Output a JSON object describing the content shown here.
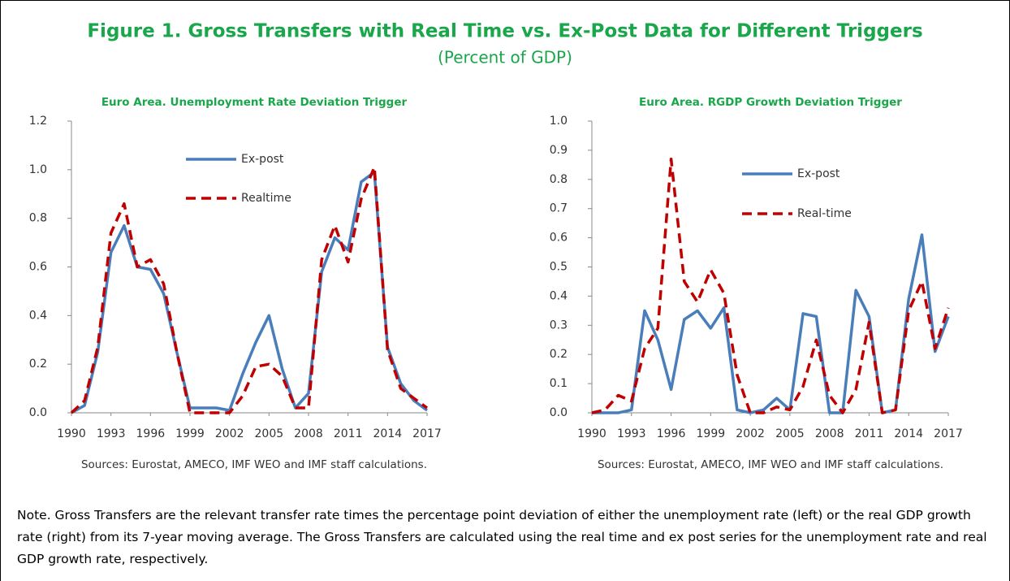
{
  "title": "Figure 1. Gross Transfers with Real Time vs. Ex-Post Data for Different Triggers",
  "subtitle": "(Percent of GDP)",
  "note": "Note. Gross Transfers are the relevant transfer rate times the percentage point deviation of either the unemployment rate (left) or the real GDP growth rate (right) from its 7-year moving average. The Gross Transfers are calculated using the real time and ex post series for the unemployment rate and real GDP growth rate, respectively.",
  "chart_data": [
    {
      "type": "line",
      "title": "Euro Area. Unemployment Rate Deviation Trigger",
      "source": "Sources: Eurostat, AMECO, IMF WEO and IMF staff calculations.",
      "x": [
        1990,
        1991,
        1992,
        1993,
        1994,
        1995,
        1996,
        1997,
        1998,
        1999,
        2000,
        2001,
        2002,
        2003,
        2004,
        2005,
        2006,
        2007,
        2008,
        2009,
        2010,
        2011,
        2012,
        2013,
        2014,
        2015,
        2016,
        2017
      ],
      "xlim": [
        1990,
        2017
      ],
      "xticks": [
        1990,
        1993,
        1996,
        1999,
        2002,
        2005,
        2008,
        2011,
        2014,
        2017
      ],
      "ylim": [
        0,
        1.2
      ],
      "yticks": [
        {
          "value": 0,
          "label": "0.0"
        },
        0.2,
        0.4,
        0.6,
        0.8,
        {
          "value": 1,
          "label": "1.0"
        },
        1.2
      ],
      "series": [
        {
          "name": "Ex-post",
          "color": "#4a7ebb",
          "dash": false,
          "values": [
            0.0,
            0.03,
            0.25,
            0.66,
            0.77,
            0.6,
            0.59,
            0.49,
            0.25,
            0.02,
            0.02,
            0.02,
            0.01,
            0.16,
            0.29,
            0.4,
            0.18,
            0.02,
            0.08,
            0.58,
            0.72,
            0.67,
            0.95,
            0.99,
            0.27,
            0.12,
            0.05,
            0.01
          ]
        },
        {
          "name": "Realtime",
          "color": "#c00000",
          "dash": true,
          "values": [
            0.0,
            0.05,
            0.27,
            0.74,
            0.86,
            0.6,
            0.63,
            0.53,
            0.25,
            0.0,
            0.0,
            0.0,
            0.0,
            0.07,
            0.19,
            0.2,
            0.15,
            0.02,
            0.02,
            0.63,
            0.77,
            0.62,
            0.88,
            1.01,
            0.26,
            0.1,
            0.06,
            0.02
          ]
        }
      ]
    },
    {
      "type": "line",
      "title": "Euro Area. RGDP Growth Deviation Trigger",
      "source": "Sources: Eurostat, AMECO, IMF WEO and IMF staff calculations.",
      "x": [
        1990,
        1991,
        1992,
        1993,
        1994,
        1995,
        1996,
        1997,
        1998,
        1999,
        2000,
        2001,
        2002,
        2003,
        2004,
        2005,
        2006,
        2007,
        2008,
        2009,
        2010,
        2011,
        2012,
        2013,
        2014,
        2015,
        2016,
        2017
      ],
      "xlim": [
        1990,
        2017
      ],
      "xticks": [
        1990,
        1993,
        1996,
        1999,
        2002,
        2005,
        2008,
        2011,
        2014,
        2017
      ],
      "ylim": [
        0,
        1
      ],
      "yticks": [
        {
          "value": 0,
          "label": "0.0"
        },
        0.1,
        0.2,
        0.3,
        0.4,
        0.5,
        0.6,
        0.7,
        0.8,
        0.9,
        {
          "value": 1,
          "label": "1.0"
        }
      ],
      "series": [
        {
          "name": "Ex-post",
          "color": "#4a7ebb",
          "dash": false,
          "values": [
            0,
            0,
            0,
            0.01,
            0.35,
            0.25,
            0.08,
            0.32,
            0.35,
            0.29,
            0.36,
            0.01,
            0.0,
            0.01,
            0.05,
            0.01,
            0.34,
            0.33,
            0.0,
            0.0,
            0.42,
            0.33,
            0.0,
            0.01,
            0.39,
            0.61,
            0.21,
            0.33
          ]
        },
        {
          "name": "Real-time",
          "color": "#c00000",
          "dash": true,
          "values": [
            0,
            0.01,
            0.06,
            0.04,
            0.22,
            0.29,
            0.87,
            0.45,
            0.38,
            0.49,
            0.41,
            0.13,
            0.0,
            0.0,
            0.02,
            0.01,
            0.09,
            0.25,
            0.06,
            0.0,
            0.08,
            0.31,
            0.0,
            0.01,
            0.35,
            0.45,
            0.22,
            0.36
          ]
        }
      ]
    }
  ]
}
